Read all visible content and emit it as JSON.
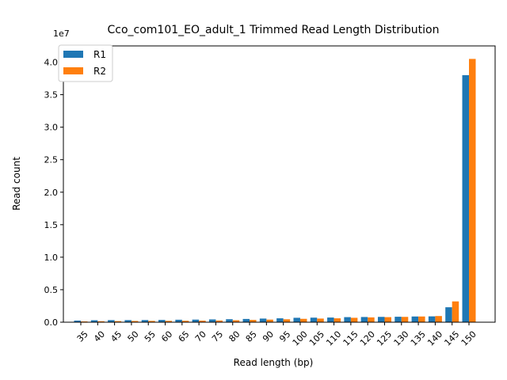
{
  "chart_data": {
    "type": "bar",
    "title": "Cco_com101_EO_adult_1 Trimmed Read Length Distribution",
    "xlabel": "Read length (bp)",
    "ylabel": "Read count",
    "y_offset_label": "1e7",
    "y_scale": 10000000,
    "ylim": [
      0,
      42500000
    ],
    "yticks": [
      0,
      5000000,
      10000000,
      15000000,
      20000000,
      25000000,
      30000000,
      35000000,
      40000000
    ],
    "ytick_labels": [
      "0.0",
      "0.5",
      "1.0",
      "1.5",
      "2.0",
      "2.5",
      "3.0",
      "3.5",
      "4.0"
    ],
    "categories": [
      "35",
      "40",
      "45",
      "50",
      "55",
      "60",
      "65",
      "70",
      "75",
      "80",
      "85",
      "90",
      "95",
      "100",
      "105",
      "110",
      "115",
      "120",
      "125",
      "130",
      "135",
      "140",
      "145",
      "150"
    ],
    "series": [
      {
        "name": "R1",
        "color": "#1f77b4",
        "values": [
          250000,
          300000,
          320000,
          320000,
          330000,
          350000,
          380000,
          400000,
          430000,
          460000,
          500000,
          560000,
          600000,
          680000,
          700000,
          720000,
          780000,
          800000,
          820000,
          840000,
          880000,
          900000,
          2300000,
          38000000
        ]
      },
      {
        "name": "R2",
        "color": "#ff7f0e",
        "values": [
          120000,
          150000,
          170000,
          190000,
          200000,
          210000,
          220000,
          240000,
          260000,
          300000,
          350000,
          400000,
          450000,
          520000,
          560000,
          600000,
          680000,
          740000,
          780000,
          820000,
          880000,
          950000,
          3200000,
          40500000
        ]
      }
    ],
    "legend": {
      "position": "top-left"
    },
    "grid": false
  }
}
